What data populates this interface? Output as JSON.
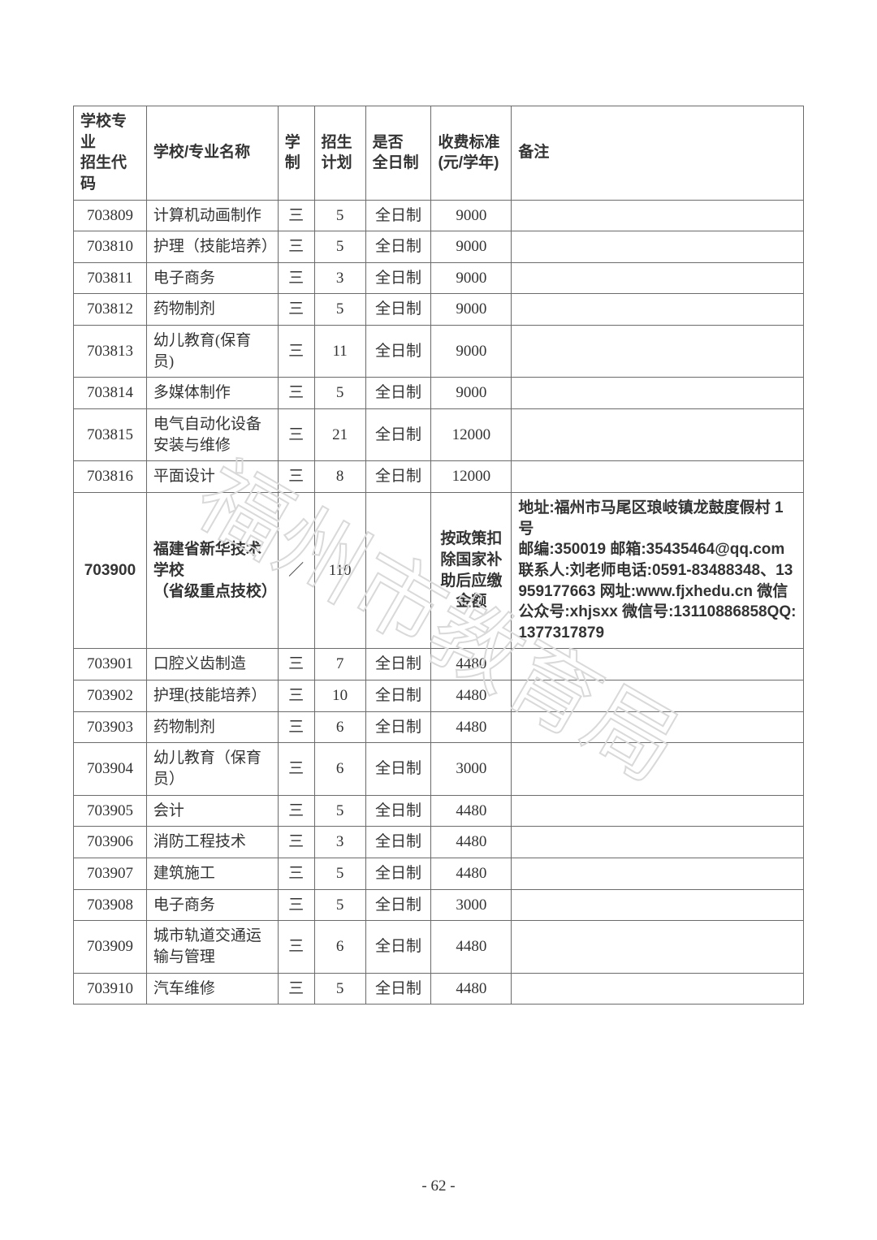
{
  "page_number": "- 62 -",
  "watermark_text": "福州市教育局",
  "table": {
    "type": "table",
    "background_color": "#ffffff",
    "border_color": "#6b6b6b",
    "text_color": "#333333",
    "watermark_color": "#d9d9d9",
    "columns": [
      {
        "key": "code",
        "label": "学校专业\n招生代码",
        "width_pct": 10,
        "align": "center",
        "header_align": "left"
      },
      {
        "key": "name",
        "label": "学校/专业名称",
        "width_pct": 18,
        "align": "left",
        "header_align": "left"
      },
      {
        "key": "years",
        "label": "学\n制",
        "width_pct": 5,
        "align": "center",
        "header_align": "left"
      },
      {
        "key": "plan",
        "label": "招生\n计划",
        "width_pct": 7,
        "align": "center",
        "header_align": "left"
      },
      {
        "key": "ft",
        "label": "是否\n全日制",
        "width_pct": 9,
        "align": "center",
        "header_align": "left"
      },
      {
        "key": "fee",
        "label": "收费标准\n(元/学年)",
        "width_pct": 11,
        "align": "center",
        "header_align": "left"
      },
      {
        "key": "remarks",
        "label": "备注",
        "width_pct": 40,
        "align": "left",
        "header_align": "left"
      }
    ],
    "fontsize_body": 19,
    "fontsize_header": 19,
    "rows": [
      {
        "code": "703809",
        "name": "计算机动画制作",
        "years": "三",
        "plan": "5",
        "ft": "全日制",
        "fee": "9000",
        "remarks": ""
      },
      {
        "code": "703810",
        "name": "护理（技能培养）",
        "years": "三",
        "plan": "5",
        "ft": "全日制",
        "fee": "9000",
        "remarks": ""
      },
      {
        "code": "703811",
        "name": "电子商务",
        "years": "三",
        "plan": "3",
        "ft": "全日制",
        "fee": "9000",
        "remarks": ""
      },
      {
        "code": "703812",
        "name": "药物制剂",
        "years": "三",
        "plan": "5",
        "ft": "全日制",
        "fee": "9000",
        "remarks": ""
      },
      {
        "code": "703813",
        "name": "幼儿教育(保育员)",
        "years": "三",
        "plan": "11",
        "ft": "全日制",
        "fee": "9000",
        "remarks": ""
      },
      {
        "code": "703814",
        "name": "多媒体制作",
        "years": "三",
        "plan": "5",
        "ft": "全日制",
        "fee": "9000",
        "remarks": ""
      },
      {
        "code": "703815",
        "name": "电气自动化设备安装与维修",
        "years": "三",
        "plan": "21",
        "ft": "全日制",
        "fee": "12000",
        "remarks": ""
      },
      {
        "code": "703816",
        "name": "平面设计",
        "years": "三",
        "plan": "8",
        "ft": "全日制",
        "fee": "12000",
        "remarks": ""
      },
      {
        "code": "703900",
        "name": "福建省新华技术学校\n（省级重点技校）",
        "years": "／",
        "plan": "110",
        "ft": "",
        "fee": "按政策扣除国家补助后应缴金额",
        "remarks": "地址:福州市马尾区琅岐镇龙鼓度假村 1 号\n邮编:350019 邮箱:35435464@qq.com　　　　联系人:刘老师电话:0591-83488348、13959177663 网址:www.fjxhedu.cn 微信公众号:xhjsxx 微信号:13110886858QQ:1377317879",
        "bold": true
      },
      {
        "code": "703901",
        "name": "口腔义齿制造",
        "years": "三",
        "plan": "7",
        "ft": "全日制",
        "fee": "4480",
        "remarks": ""
      },
      {
        "code": "703902",
        "name": "护理(技能培养）",
        "years": "三",
        "plan": "10",
        "ft": "全日制",
        "fee": "4480",
        "remarks": ""
      },
      {
        "code": "703903",
        "name": "药物制剂",
        "years": "三",
        "plan": "6",
        "ft": "全日制",
        "fee": "4480",
        "remarks": ""
      },
      {
        "code": "703904",
        "name": "幼儿教育（保育员）",
        "years": "三",
        "plan": "6",
        "ft": "全日制",
        "fee": "3000",
        "remarks": ""
      },
      {
        "code": "703905",
        "name": "会计",
        "years": "三",
        "plan": "5",
        "ft": "全日制",
        "fee": "4480",
        "remarks": ""
      },
      {
        "code": "703906",
        "name": "消防工程技术",
        "years": "三",
        "plan": "3",
        "ft": "全日制",
        "fee": "4480",
        "remarks": ""
      },
      {
        "code": "703907",
        "name": "建筑施工",
        "years": "三",
        "plan": "5",
        "ft": "全日制",
        "fee": "4480",
        "remarks": ""
      },
      {
        "code": "703908",
        "name": "电子商务",
        "years": "三",
        "plan": "5",
        "ft": "全日制",
        "fee": "3000",
        "remarks": ""
      },
      {
        "code": "703909",
        "name": "城市轨道交通运输与管理",
        "years": "三",
        "plan": "6",
        "ft": "全日制",
        "fee": "4480",
        "remarks": ""
      },
      {
        "code": "703910",
        "name": "汽车维修",
        "years": "三",
        "plan": "5",
        "ft": "全日制",
        "fee": "4480",
        "remarks": ""
      }
    ]
  }
}
